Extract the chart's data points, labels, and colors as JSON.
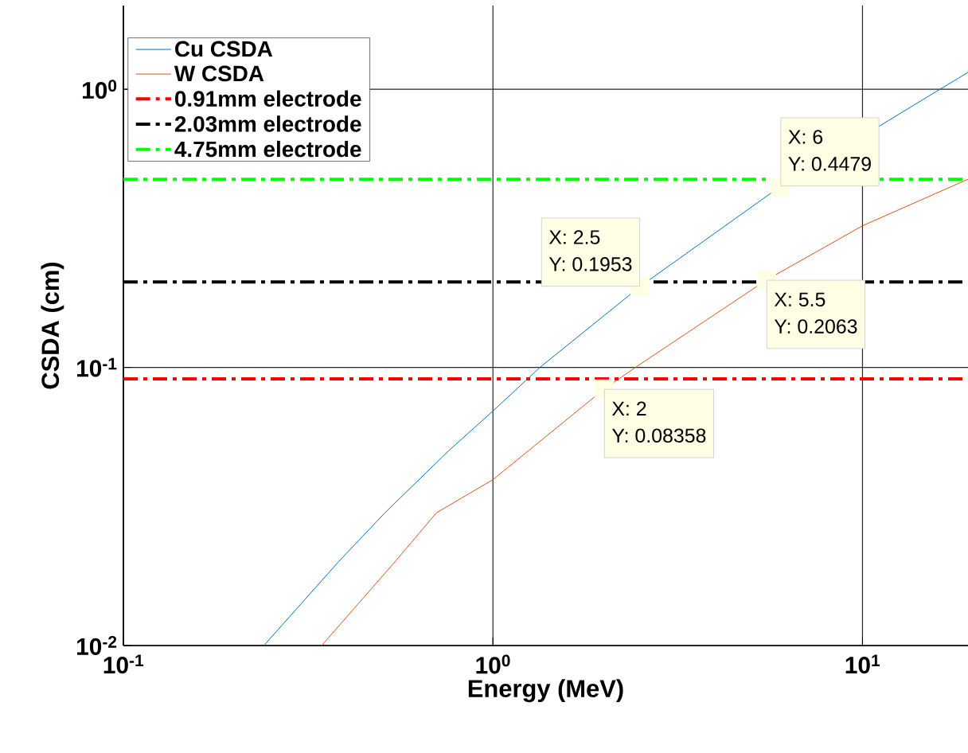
{
  "chart_data": {
    "type": "line",
    "xlabel": "Energy (MeV)",
    "ylabel": "CSDA (cm)",
    "log": "xy",
    "grid": true,
    "legend": "top left",
    "line_style": "solid",
    "marker": "none",
    "xlim": [
      0.1,
      19.3
    ],
    "ylim": [
      0.01,
      2
    ],
    "xticks": [
      {
        "value": 0.1,
        "label": "10$^{-1}$"
      },
      {
        "value": 1,
        "label": "10$^{0}$"
      },
      {
        "value": 10,
        "label": "10$^{1}$"
      }
    ],
    "yticks": [
      {
        "value": 0.01,
        "label": "10$^{-2}$"
      },
      {
        "value": 0.1,
        "label": "10$^{-1}$"
      },
      {
        "value": 1,
        "label": "10$^{0}$"
      }
    ],
    "series": [
      {
        "name": "Cu CSDA",
        "color": "#0072bd",
        "x": [
          0.24,
          0.382,
          0.51,
          0.757,
          1,
          1.34,
          2.5,
          6,
          16.2,
          19.3
        ],
        "values": [
          0.01,
          0.02,
          0.03,
          0.05,
          0.0697,
          0.1,
          0.1953,
          0.4479,
          1.0,
          1.15
        ]
      },
      {
        "name": "W CSDA",
        "color": "#d95319",
        "x": [
          0.344,
          0.543,
          0.703,
          1,
          2,
          2.43,
          5.5,
          10,
          19.3
        ],
        "values": [
          0.01,
          0.02,
          0.03,
          0.0395,
          0.08358,
          0.1,
          0.2063,
          0.323,
          0.475
        ]
      }
    ],
    "ref_lines": [
      {
        "axis": "y",
        "value": 0.091,
        "label": "0.91mm electrode",
        "color": "#ff0000",
        "line_style": "dashdot"
      },
      {
        "axis": "y",
        "value": 0.203,
        "label": "2.03mm electrode",
        "color": "#000000",
        "line_style": "dashdot"
      },
      {
        "axis": "y",
        "value": 0.475,
        "label": "4.75mm electrode",
        "color": "#00ff00",
        "line_style": "dashdot"
      }
    ],
    "annotations": [
      {
        "text": "X: 2.5",
        "x": 2.5,
        "y": 0.1953
      },
      {
        "text": "Y: 0.1953",
        "x": 2.5,
        "y": 0.1953
      },
      {
        "text": "X: 6",
        "x": 6,
        "y": 0.4479
      },
      {
        "text": "Y: 0.4479",
        "x": 6,
        "y": 0.4479
      },
      {
        "text": "X: 5.5",
        "x": 5.5,
        "y": 0.2063
      },
      {
        "text": "Y: 0.2063",
        "x": 5.5,
        "y": 0.2063
      },
      {
        "text": "X: 2",
        "x": 2,
        "y": 0.08358
      },
      {
        "text": "Y: 0.08358",
        "x": 2,
        "y": 0.08358
      }
    ]
  }
}
